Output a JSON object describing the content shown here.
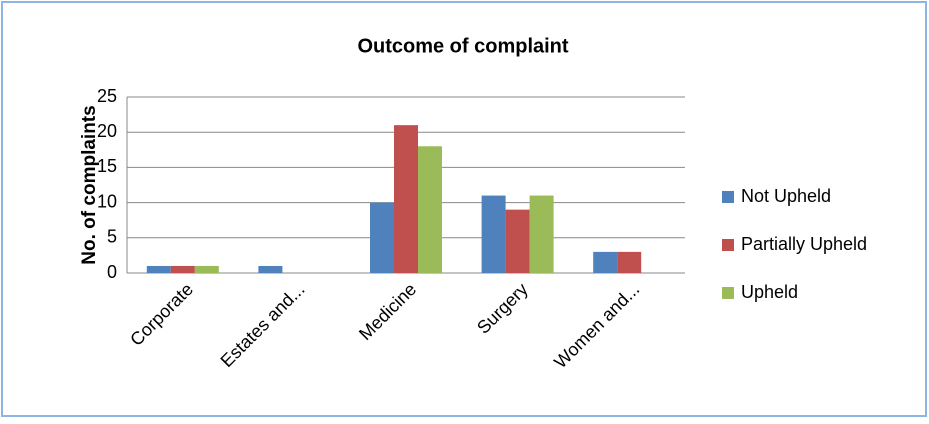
{
  "chart_data": {
    "type": "bar",
    "title": "Outcome of complaint",
    "y_label": "No. of complaints",
    "categories": [
      "Corporate",
      "Estates and...",
      "Medicine",
      "Surgery",
      "Women and..."
    ],
    "series": [
      {
        "name": "Not Upheld",
        "color": "#4f81bd",
        "values": [
          1,
          1,
          10,
          11,
          3
        ]
      },
      {
        "name": "Partially Upheld",
        "color": "#c0504d",
        "values": [
          1,
          0,
          21,
          9,
          3
        ]
      },
      {
        "name": "Upheld",
        "color": "#9bbb59",
        "values": [
          1,
          0,
          18,
          11,
          0
        ]
      }
    ],
    "ylim": [
      0,
      25
    ],
    "yticks": [
      0,
      5,
      10,
      15,
      20,
      25
    ],
    "grid": true,
    "legend": "right"
  }
}
